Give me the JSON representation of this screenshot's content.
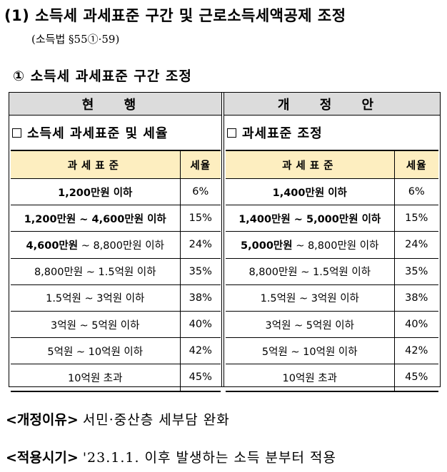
{
  "heading": "(1) 소득세 과세표준 구간 및 근로소득세액공제 조정",
  "law_ref": "(소득법 §55①·59)",
  "subheading": "① 소득세 과세표준 구간 조정",
  "columns": {
    "current": {
      "header": "현 행",
      "section_title": "소득세 과세표준 및 세율",
      "table_headers": [
        "과세표준",
        "세율"
      ],
      "rows": [
        {
          "bracket_bold": "1,200만원 이하",
          "bracket": "",
          "rate": "6%"
        },
        {
          "bracket_bold": "1,200만원 ~ 4,600만원 이하",
          "bracket": "",
          "rate": "15%"
        },
        {
          "bracket_bold": "4,600만원",
          "bracket": " ~ 8,800만원 이하",
          "rate": "24%"
        },
        {
          "bracket_bold": "",
          "bracket": "8,800만원 ~ 1.5억원 이하",
          "rate": "35%"
        },
        {
          "bracket_bold": "",
          "bracket": "1.5억원 ~ 3억원 이하",
          "rate": "38%"
        },
        {
          "bracket_bold": "",
          "bracket": "3억원 ~ 5억원 이하",
          "rate": "40%"
        },
        {
          "bracket_bold": "",
          "bracket": "5억원 ~ 10억원 이하",
          "rate": "42%"
        },
        {
          "bracket_bold": "",
          "bracket": "10억원 초과",
          "rate": "45%"
        }
      ]
    },
    "proposed": {
      "header": "개 정 안",
      "section_title": "과세표준 조정",
      "table_headers": [
        "과세표준",
        "세율"
      ],
      "rows": [
        {
          "bracket_bold": "1,400만원 이하",
          "bracket": "",
          "rate": "6%"
        },
        {
          "bracket_bold": "1,400만원 ~ 5,000만원 이하",
          "bracket": "",
          "rate": "15%"
        },
        {
          "bracket_bold": "5,000만원",
          "bracket": " ~ 8,800만원 이하",
          "rate": "24%"
        },
        {
          "bracket_bold": "",
          "bracket": "8,800만원 ~ 1.5억원 이하",
          "rate": "35%"
        },
        {
          "bracket_bold": "",
          "bracket": "1.5억원 ~ 3억원 이하",
          "rate": "38%"
        },
        {
          "bracket_bold": "",
          "bracket": "3억원 ~ 5억원 이하",
          "rate": "40%"
        },
        {
          "bracket_bold": "",
          "bracket": "5억원 ~ 10억원 이하",
          "rate": "42%"
        },
        {
          "bracket_bold": "",
          "bracket": "10억원 초과",
          "rate": "45%"
        }
      ]
    }
  },
  "reason": {
    "label": "<개정이유>",
    "text": "서민·중산층 세부담 완화"
  },
  "effective": {
    "label": "<적용시기>",
    "text": "'23.1.1. 이후 발생하는 소득 분부터 적용"
  }
}
